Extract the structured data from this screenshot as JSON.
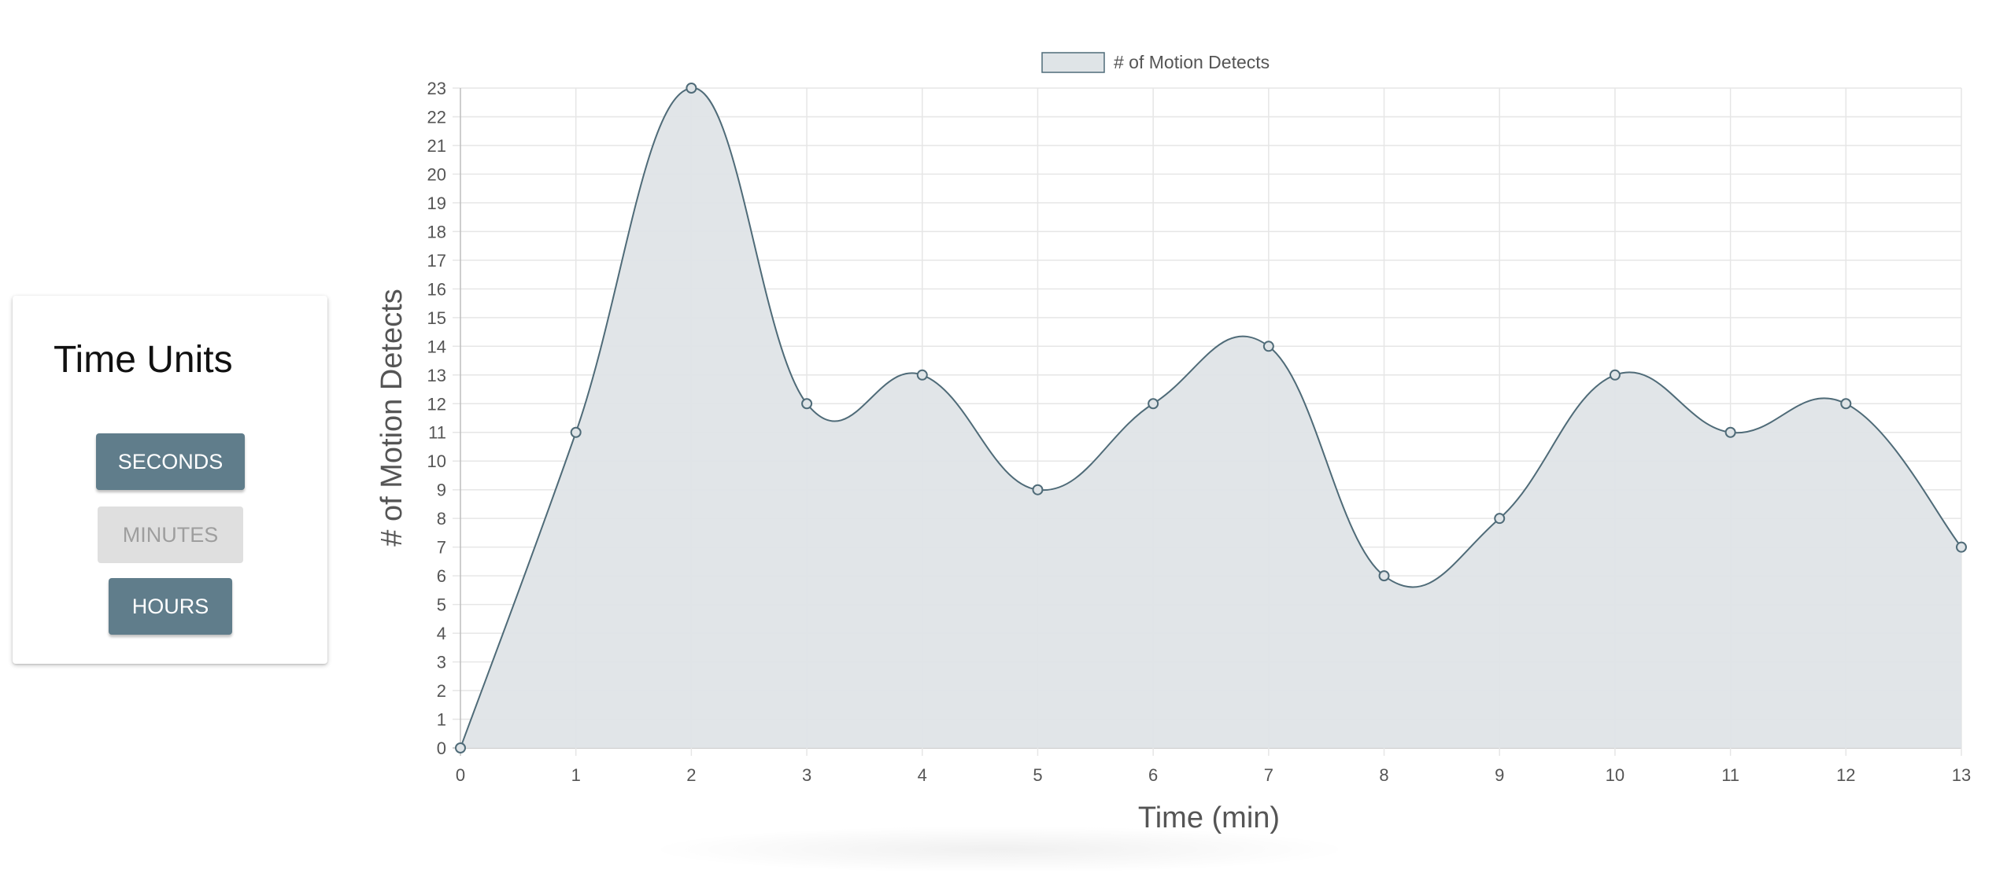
{
  "panel": {
    "title": "Time Units",
    "buttons": {
      "seconds": "SECONDS",
      "minutes": "MINUTES",
      "hours": "HOURS"
    },
    "selected": "minutes"
  },
  "colors": {
    "button_active": "#607d8b",
    "button_disabled": "#dfdfdf",
    "line": "#4f6b78",
    "fill": "#dfe4e7"
  },
  "chart_data": {
    "type": "area",
    "x": [
      0,
      1,
      2,
      3,
      4,
      5,
      6,
      7,
      8,
      9,
      10,
      11,
      12,
      13
    ],
    "series": [
      {
        "name": "# of Motion Detects",
        "values": [
          0,
          11,
          23,
          12,
          13,
          9,
          12,
          14,
          6,
          8,
          13,
          11,
          12,
          7
        ]
      }
    ],
    "xlabel": "Time (min)",
    "ylabel": "# of Motion Detects",
    "xlim": [
      0,
      13
    ],
    "ylim": [
      0,
      23
    ],
    "x_ticks": [
      "0",
      "1",
      "2",
      "3",
      "4",
      "5",
      "6",
      "7",
      "8",
      "9",
      "10",
      "11",
      "12",
      "13"
    ],
    "y_ticks": [
      "0",
      "1",
      "2",
      "3",
      "4",
      "5",
      "6",
      "7",
      "8",
      "9",
      "10",
      "11",
      "12",
      "13",
      "14",
      "15",
      "16",
      "17",
      "18",
      "19",
      "20",
      "21",
      "22",
      "23"
    ],
    "grid": true,
    "legend": "top-center",
    "curve": "smooth"
  }
}
